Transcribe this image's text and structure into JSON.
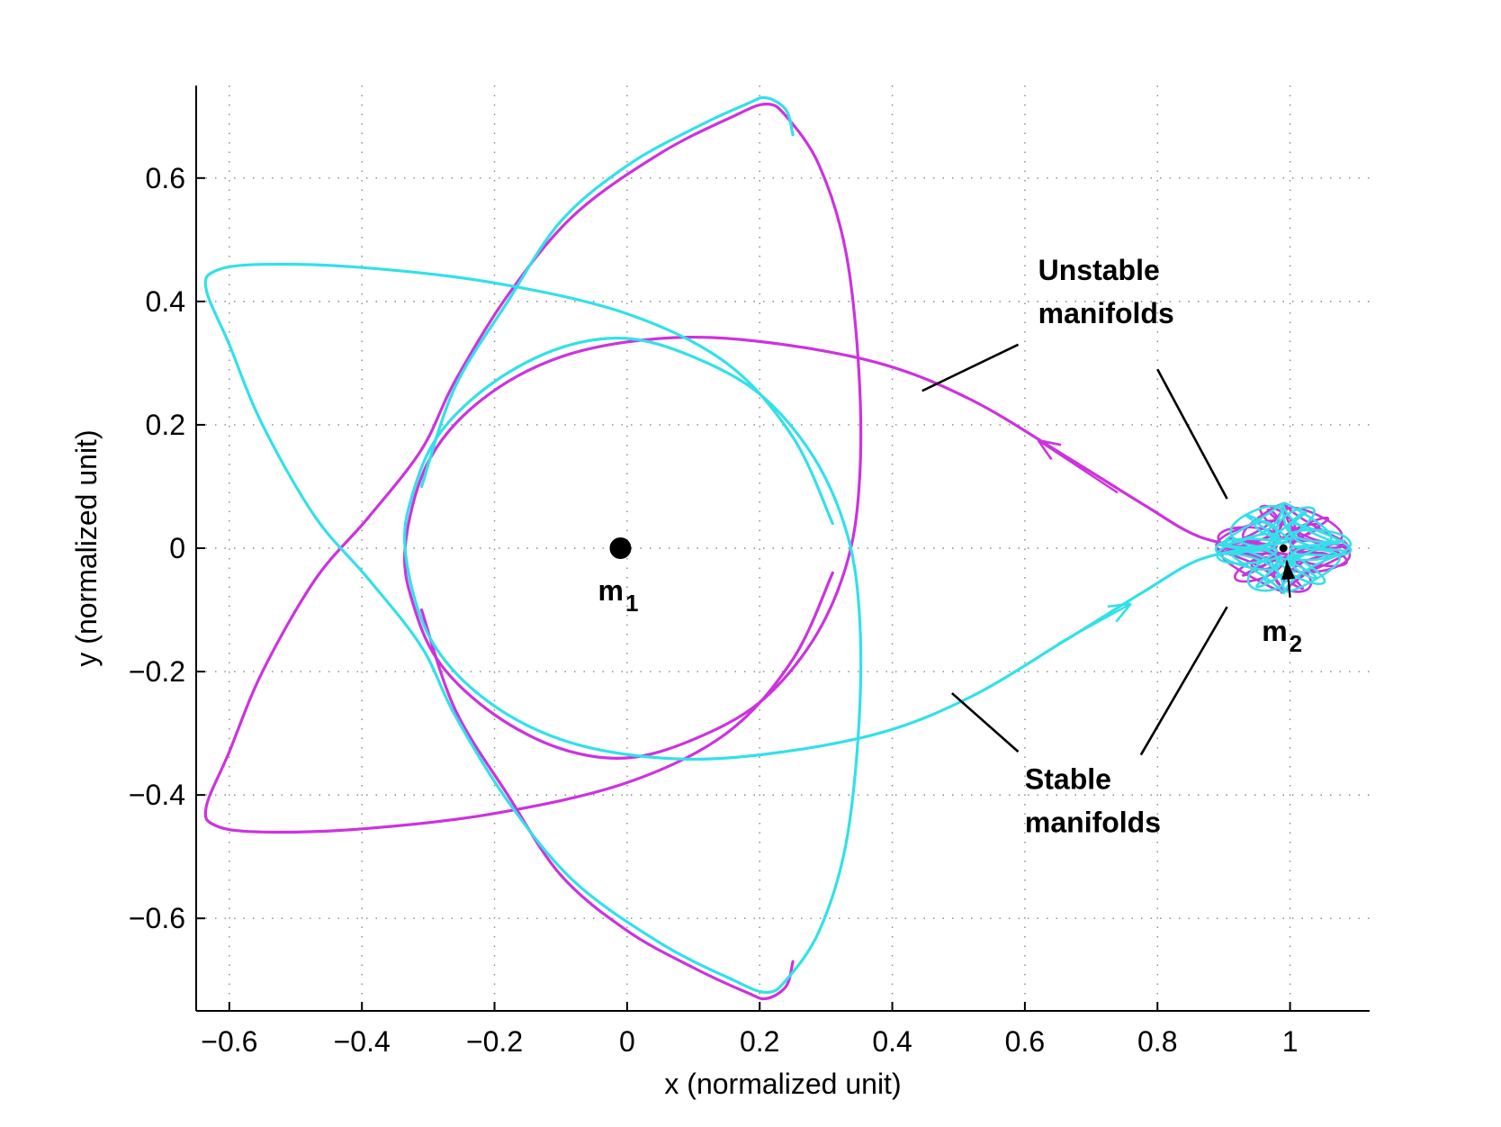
{
  "chart_data": {
    "type": "line",
    "title": "",
    "xlabel": "x (normalized unit)",
    "ylabel": "y (normalized unit)",
    "xlim": [
      -0.65,
      1.12
    ],
    "ylim": [
      -0.75,
      0.75
    ],
    "x_ticks": [
      -0.6,
      -0.4,
      -0.2,
      0,
      0.2,
      0.4,
      0.6,
      0.8,
      1
    ],
    "x_tick_labels": [
      "−0.6",
      "−0.4",
      "−0.2",
      "0",
      "0.2",
      "0.4",
      "0.6",
      "0.8",
      "1"
    ],
    "y_ticks": [
      -0.6,
      -0.4,
      -0.2,
      0,
      0.2,
      0.4,
      0.6
    ],
    "y_tick_labels": [
      "−0.6",
      "−0.4",
      "−0.2",
      "0",
      "0.2",
      "0.4",
      "0.6"
    ],
    "grid": true,
    "series": [
      {
        "color": "#cc33dd",
        "points": [
          [
            0.995,
            -0.01
          ],
          [
            0.94,
            0.0
          ],
          [
            0.86,
            0.02
          ],
          [
            0.78,
            0.07
          ],
          [
            0.66,
            0.15
          ],
          [
            0.52,
            0.24
          ],
          [
            0.38,
            0.3
          ],
          [
            0.2,
            0.335
          ],
          [
            0.05,
            0.34
          ],
          [
            -0.1,
            0.31
          ],
          [
            -0.22,
            0.24
          ],
          [
            -0.3,
            0.14
          ],
          [
            -0.335,
            0.0
          ],
          [
            -0.32,
            -0.1
          ],
          [
            -0.28,
            -0.19
          ],
          [
            -0.2,
            -0.27
          ],
          [
            -0.1,
            -0.325
          ],
          [
            0.0,
            -0.34
          ],
          [
            0.1,
            -0.31
          ],
          [
            0.2,
            -0.25
          ],
          [
            0.28,
            -0.15
          ],
          [
            0.33,
            -0.03
          ],
          [
            0.35,
            0.1
          ],
          [
            0.35,
            0.28
          ],
          [
            0.33,
            0.48
          ],
          [
            0.29,
            0.62
          ],
          [
            0.24,
            0.7
          ],
          [
            0.21,
            0.72
          ],
          [
            0.16,
            0.7
          ],
          [
            0.05,
            0.64
          ],
          [
            -0.08,
            0.54
          ],
          [
            -0.18,
            0.41
          ],
          [
            -0.26,
            0.27
          ],
          [
            -0.31,
            0.16
          ],
          [
            -0.39,
            0.05
          ],
          [
            -0.47,
            -0.05
          ],
          [
            -0.55,
            -0.2
          ],
          [
            -0.6,
            -0.33
          ],
          [
            -0.635,
            -0.42
          ],
          [
            -0.62,
            -0.45
          ],
          [
            -0.55,
            -0.46
          ],
          [
            -0.4,
            -0.455
          ],
          [
            -0.2,
            -0.43
          ],
          [
            0.0,
            -0.38
          ],
          [
            0.15,
            -0.3
          ],
          [
            0.25,
            -0.18
          ],
          [
            0.31,
            -0.04
          ]
        ],
        "trailing_points": [
          [
            -0.31,
            -0.1
          ],
          [
            -0.26,
            -0.26
          ],
          [
            -0.18,
            -0.4
          ],
          [
            -0.1,
            -0.53
          ],
          [
            0.0,
            -0.62
          ],
          [
            0.1,
            -0.68
          ],
          [
            0.18,
            -0.72
          ],
          [
            0.21,
            -0.73
          ],
          [
            0.24,
            -0.71
          ],
          [
            0.25,
            -0.67
          ]
        ]
      },
      {
        "color": "#33e0e8",
        "points": [
          [
            0.995,
            0.01
          ],
          [
            0.94,
            0.0
          ],
          [
            0.86,
            -0.02
          ],
          [
            0.78,
            -0.07
          ],
          [
            0.66,
            -0.15
          ],
          [
            0.52,
            -0.24
          ],
          [
            0.38,
            -0.3
          ],
          [
            0.2,
            -0.335
          ],
          [
            0.05,
            -0.34
          ],
          [
            -0.1,
            -0.31
          ],
          [
            -0.22,
            -0.24
          ],
          [
            -0.3,
            -0.14
          ],
          [
            -0.335,
            0.0
          ],
          [
            -0.32,
            0.1
          ],
          [
            -0.28,
            0.19
          ],
          [
            -0.2,
            0.27
          ],
          [
            -0.1,
            0.325
          ],
          [
            0.0,
            0.34
          ],
          [
            0.1,
            0.31
          ],
          [
            0.2,
            0.25
          ],
          [
            0.28,
            0.15
          ],
          [
            0.33,
            0.03
          ],
          [
            0.35,
            -0.1
          ],
          [
            0.35,
            -0.28
          ],
          [
            0.33,
            -0.48
          ],
          [
            0.29,
            -0.62
          ],
          [
            0.24,
            -0.7
          ],
          [
            0.21,
            -0.72
          ],
          [
            0.16,
            -0.7
          ],
          [
            0.05,
            -0.64
          ],
          [
            -0.08,
            -0.54
          ],
          [
            -0.18,
            -0.41
          ],
          [
            -0.26,
            -0.27
          ],
          [
            -0.31,
            -0.16
          ],
          [
            -0.39,
            -0.05
          ],
          [
            -0.47,
            0.05
          ],
          [
            -0.55,
            0.2
          ],
          [
            -0.6,
            0.33
          ],
          [
            -0.635,
            0.42
          ],
          [
            -0.62,
            0.45
          ],
          [
            -0.55,
            0.46
          ],
          [
            -0.4,
            0.455
          ],
          [
            -0.2,
            0.43
          ],
          [
            0.0,
            0.38
          ],
          [
            0.15,
            0.3
          ],
          [
            0.25,
            0.18
          ],
          [
            0.31,
            0.04
          ]
        ],
        "trailing_points": [
          [
            -0.31,
            0.1
          ],
          [
            -0.26,
            0.26
          ],
          [
            -0.18,
            0.4
          ],
          [
            -0.1,
            0.53
          ],
          [
            0.0,
            0.62
          ],
          [
            0.1,
            0.68
          ],
          [
            0.18,
            0.72
          ],
          [
            0.21,
            0.73
          ],
          [
            0.24,
            0.71
          ],
          [
            0.25,
            0.67
          ]
        ]
      }
    ],
    "flow_arrows": [
      {
        "color": "#cc33dd",
        "from": [
          0.74,
          0.09
        ],
        "to": [
          0.62,
          0.175
        ]
      },
      {
        "color": "#33e0e8",
        "from": [
          0.65,
          -0.155
        ],
        "to": [
          0.76,
          -0.09
        ]
      }
    ],
    "bodies": [
      {
        "label": "m",
        "subscript": "1",
        "x": -0.01,
        "y": 0.0,
        "marker": "large-dot"
      },
      {
        "label": "m",
        "subscript": "2",
        "x": 0.99,
        "y": 0.0,
        "marker": "small-dot"
      }
    ],
    "m2_pointer": {
      "from": [
        1.0,
        -0.08
      ],
      "to": [
        0.995,
        -0.02
      ]
    },
    "annotations": [
      {
        "lines": [
          "Unstable",
          "manifolds"
        ],
        "anchor": [
          0.62,
          0.435
        ],
        "leaders": [
          {
            "from": [
              0.59,
              0.33
            ],
            "to": [
              0.445,
              0.255
            ]
          },
          {
            "from": [
              0.8,
              0.29
            ],
            "to": [
              0.905,
              0.08
            ]
          }
        ]
      },
      {
        "lines": [
          "Stable",
          "manifolds"
        ],
        "anchor": [
          0.6,
          -0.39
        ],
        "leaders": [
          {
            "from": [
              0.59,
              -0.33
            ],
            "to": [
              0.49,
              -0.235
            ]
          },
          {
            "from": [
              0.775,
              -0.335
            ],
            "to": [
              0.905,
              -0.095
            ]
          }
        ]
      }
    ]
  }
}
